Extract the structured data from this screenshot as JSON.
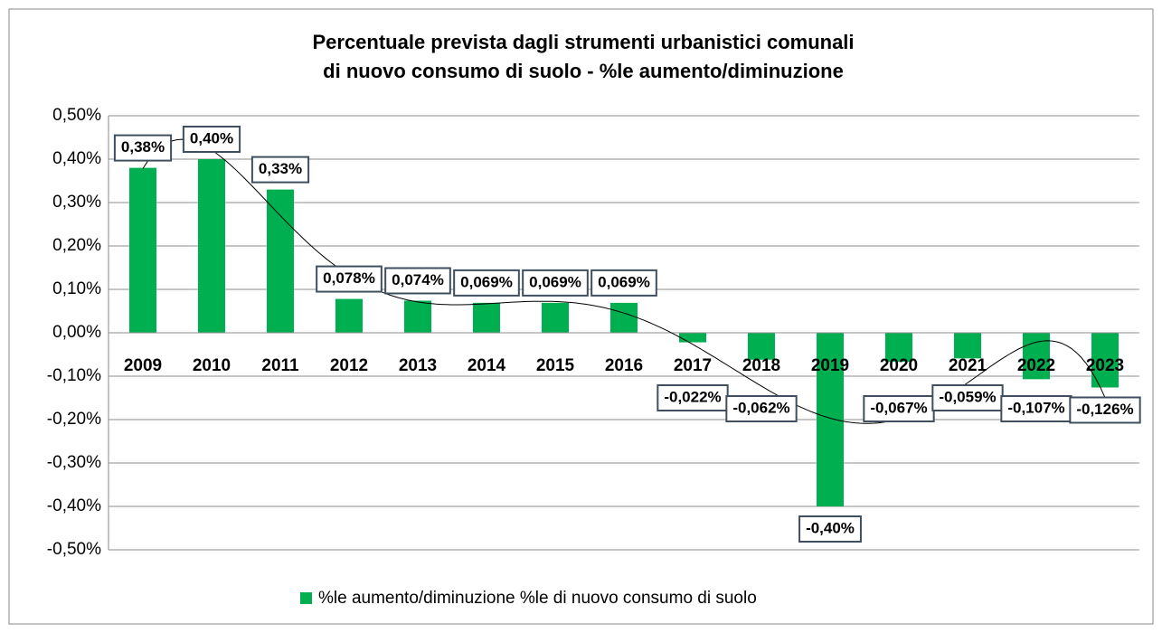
{
  "chart_data": {
    "type": "bar",
    "title": [
      "Percentuale prevista dagli strumenti urbanistici comunali",
      "di nuovo consumo di suolo - %le  aumento/diminuzione"
    ],
    "categories": [
      "2009",
      "2010",
      "2011",
      "2012",
      "2013",
      "2014",
      "2015",
      "2016",
      "2017",
      "2018",
      "2019",
      "2020",
      "2021",
      "2022",
      "2023"
    ],
    "series": [
      {
        "name": "%le aumento/diminuzione %le di nuovo consumo di suolo",
        "color": "#00b050",
        "values": [
          0.38,
          0.4,
          0.33,
          0.078,
          0.074,
          0.069,
          0.069,
          0.069,
          -0.022,
          -0.062,
          -0.4,
          -0.067,
          -0.059,
          -0.107,
          -0.126
        ],
        "value_labels": [
          "0,38%",
          "0,40%",
          "0,33%",
          "0,078%",
          "0,074%",
          "0,069%",
          "0,069%",
          "0,069%",
          "-0,022%",
          "-0,062%",
          "-0,40%",
          "-0,067%",
          "-0,059%",
          "-0,107%",
          "-0,126%"
        ]
      }
    ],
    "ylim": [
      -0.5,
      0.5
    ],
    "yticks": [
      {
        "value": 0.5,
        "label": "0,50%"
      },
      {
        "value": 0.4,
        "label": "0,40%"
      },
      {
        "value": 0.3,
        "label": "0,30%"
      },
      {
        "value": 0.2,
        "label": "0,20%"
      },
      {
        "value": 0.1,
        "label": "0,10%"
      },
      {
        "value": 0,
        "label": "0,00%"
      },
      {
        "value": -0.1,
        "label": "-0,10%"
      },
      {
        "value": -0.2,
        "label": "-0,20%"
      },
      {
        "value": -0.3,
        "label": "-0,30%"
      },
      {
        "value": -0.4,
        "label": "-0,40%"
      },
      {
        "value": -0.5,
        "label": "-0,50%"
      }
    ],
    "grid": true,
    "trendline": "polynomial",
    "legend": "bottom"
  }
}
